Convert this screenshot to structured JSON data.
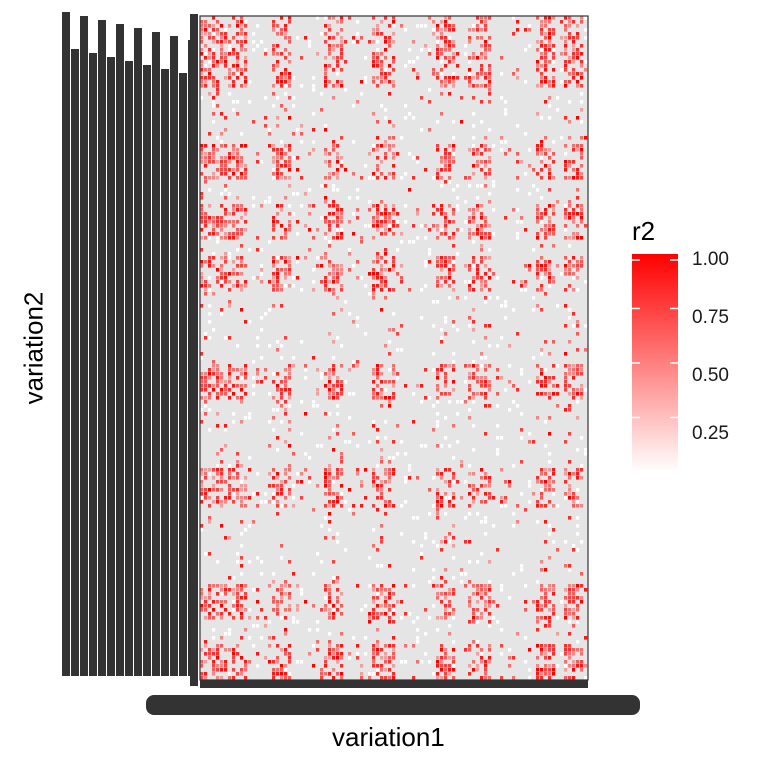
{
  "chart_data": {
    "type": "heatmap",
    "title": "",
    "xlabel": "variation1",
    "ylabel": "variation2",
    "x_tick_labels_legible": false,
    "y_tick_labels_legible": false,
    "background_fill": "#e5e5e5",
    "value_range": [
      0,
      1
    ],
    "legend": {
      "title": "r2",
      "placement": "right",
      "breaks": [
        1.0,
        0.75,
        0.5,
        0.25
      ],
      "break_labels": [
        "1.00",
        "0.75",
        "0.50",
        "0.25"
      ],
      "color_low": "#ffffff",
      "color_high": "#ff0000"
    },
    "structure": {
      "dense_column_bands": [
        0.0,
        0.06,
        0.18,
        0.31,
        0.44,
        0.6,
        0.69,
        0.86,
        0.93
      ],
      "dense_row_bands": [
        0.0,
        0.05,
        0.19,
        0.28,
        0.36,
        0.52,
        0.68,
        0.85,
        0.94
      ]
    }
  },
  "colors": {
    "tick_label_dark": "#333333",
    "panel_border": "#333333"
  }
}
